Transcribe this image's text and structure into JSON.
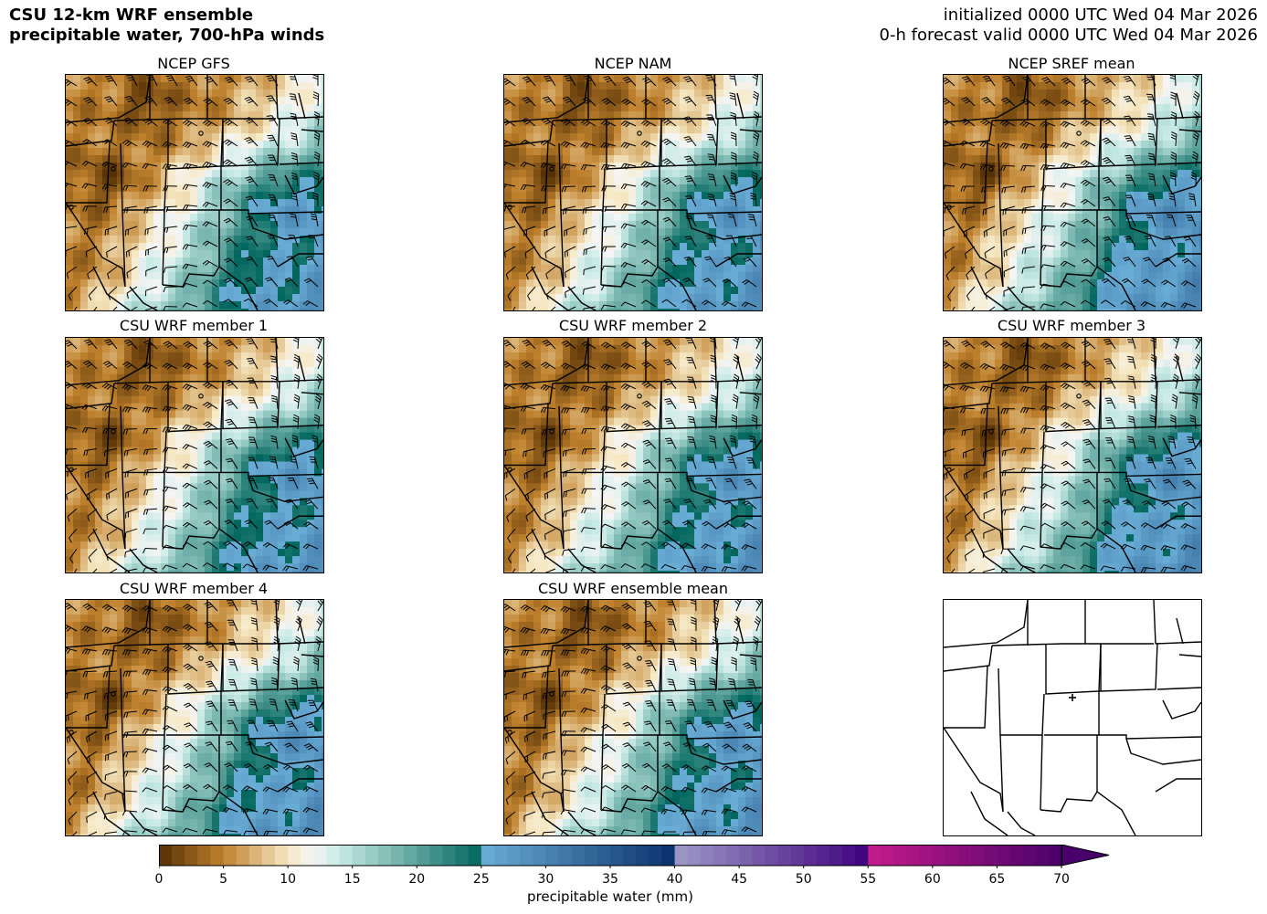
{
  "header": {
    "title_line1": "CSU 12-km WRF ensemble",
    "title_line2": "precipitable water, 700-hPa winds",
    "init_line": "initialized 0000 UTC Wed 04 Mar 2026",
    "valid_line": "0-h forecast valid 0000 UTC Wed 04 Mar 2026"
  },
  "panels": [
    {
      "title": "NCEP GFS",
      "moist_shift": 0
    },
    {
      "title": "NCEP NAM",
      "moist_shift": 0.02
    },
    {
      "title": "NCEP SREF mean",
      "moist_shift": 0.06
    },
    {
      "title": "CSU WRF member 1",
      "moist_shift": 0.01
    },
    {
      "title": "CSU WRF member 2",
      "moist_shift": 0.02
    },
    {
      "title": "CSU WRF member 3",
      "moist_shift": 0.05
    },
    {
      "title": "CSU WRF member 4",
      "moist_shift": 0.03
    },
    {
      "title": "CSU WRF ensemble mean",
      "moist_shift": 0.02
    },
    {
      "title": "",
      "moist_shift": 0
    }
  ],
  "colorbar": {
    "label": "precipitable water (mm)",
    "min": 0,
    "max": 70,
    "tick_labels": [
      "0",
      "5",
      "10",
      "15",
      "20",
      "25",
      "30",
      "35",
      "40",
      "45",
      "50",
      "55",
      "60",
      "65",
      "70"
    ],
    "extend": "max",
    "colors": {
      "dry_brown": "#543005",
      "mid_brown": "#bf812d",
      "tan": "#f6e8c3",
      "white": "#f5f5f5",
      "teal_light": "#c7eae5",
      "teal_dark": "#01665e",
      "blue_light": "#6aaed6",
      "blue_dark": "#08306b",
      "lavender": "#9e9ac8",
      "purple": "#3f007d",
      "magenta": "#c51b8a",
      "dark_purple": "#49006a"
    }
  },
  "colors": {
    "outline": "#000000",
    "background": "#ffffff"
  }
}
